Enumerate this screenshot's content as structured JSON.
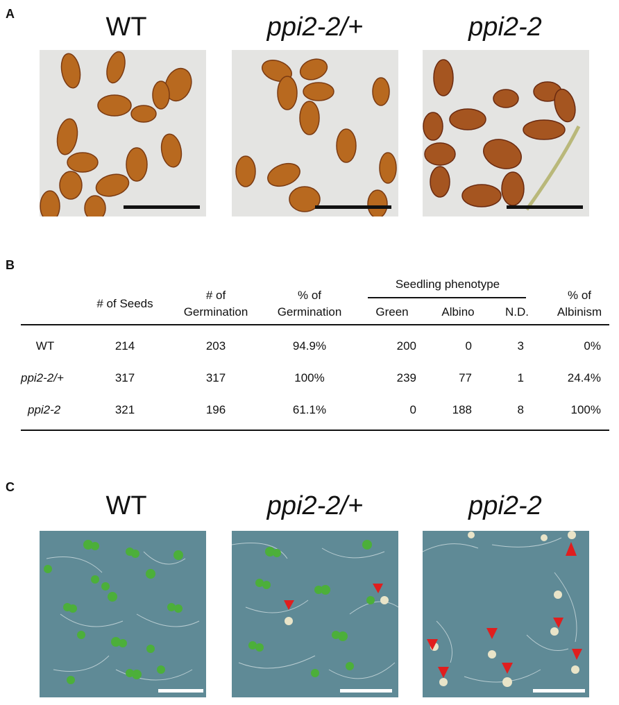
{
  "panels": {
    "a": "A",
    "b": "B",
    "c": "C"
  },
  "genotypes": [
    "WT",
    "ppi2-2/+",
    "ppi2-2"
  ],
  "table": {
    "headers": {
      "seeds": "# of Seeds",
      "germ_count": [
        "# of",
        "Germination"
      ],
      "germ_pct": [
        "% of",
        "Germination"
      ],
      "phenotype_group": "Seedling phenotype",
      "green": "Green",
      "albino": "Albino",
      "nd": "N.D.",
      "albinism": [
        "% of",
        "Albinism"
      ]
    },
    "rows": [
      {
        "genotype": "WT",
        "seeds": "214",
        "germ": "203",
        "germ_pct": "94.9%",
        "green": "200",
        "albino": "0",
        "nd": "3",
        "albinism": "0%"
      },
      {
        "genotype": "ppi2-2/+",
        "seeds": "317",
        "germ": "317",
        "germ_pct": "100%",
        "green": "239",
        "albino": "77",
        "nd": "1",
        "albinism": "24.4%"
      },
      {
        "genotype": "ppi2-2",
        "seeds": "321",
        "germ": "196",
        "germ_pct": "61.1%",
        "green": "0",
        "albino": "188",
        "nd": "8",
        "albinism": "100%"
      }
    ]
  },
  "colors": {
    "seed_bg": "#e4e4e2",
    "seed": "#b5651d",
    "seed_dark": "#7a2e14",
    "plate_bg": "#5f8a96",
    "cotyledon": "#4caf3a",
    "albino": "#e9e4c8",
    "arrow": "#e01e1e",
    "scalebar_black": "#111111",
    "scalebar_white": "#ffffff"
  }
}
